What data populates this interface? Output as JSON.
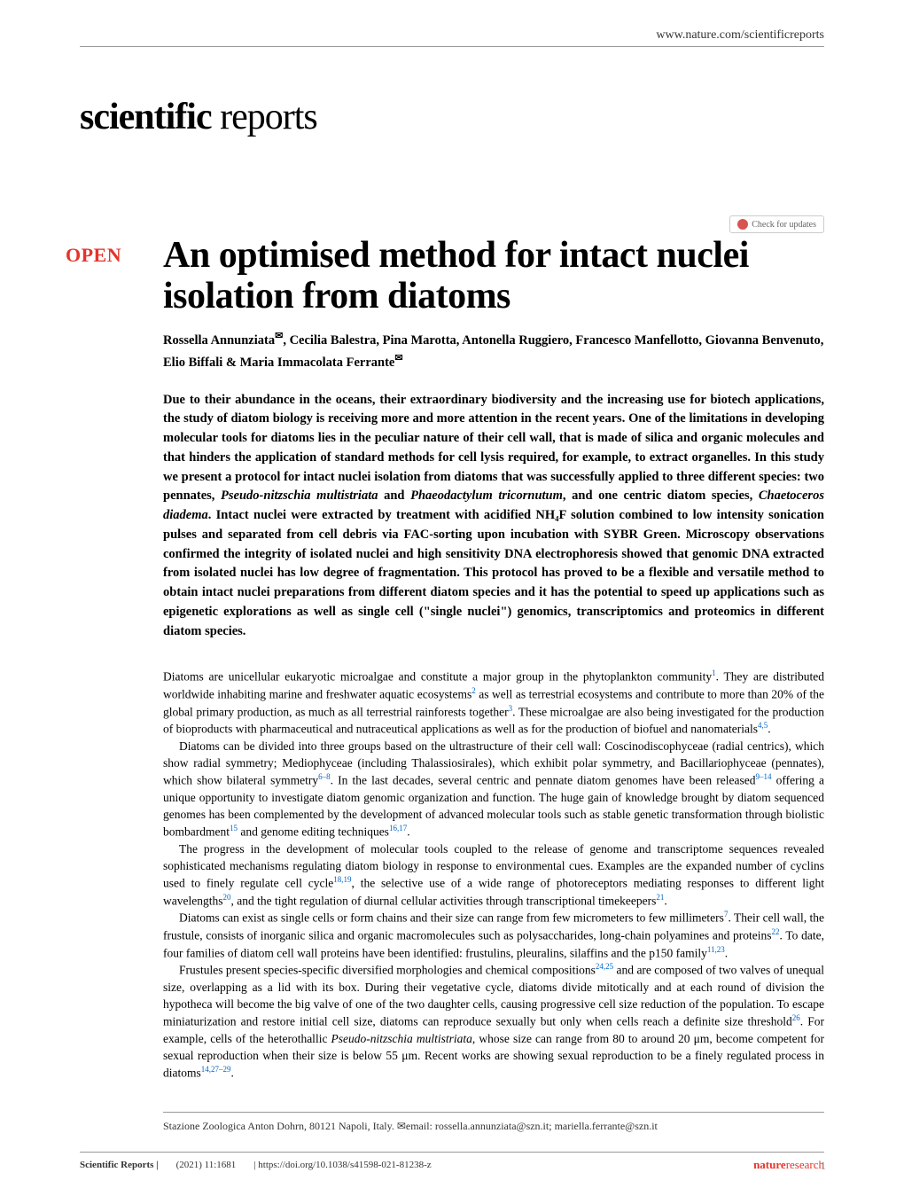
{
  "header": {
    "url": "www.nature.com/scientificreports",
    "journal_bold": "scientific",
    "journal_light": " reports",
    "check_updates": "Check for updates"
  },
  "article": {
    "open_label": "OPEN",
    "title": "An optimised method for intact nuclei isolation from diatoms",
    "authors_line1": "Rossella Annunziata",
    "authors_line2": ", Cecilia Balestra, Pina Marotta, Antonella Ruggiero, Francesco Manfellotto, Giovanna Benvenuto, Elio Biffali & Maria Immacolata Ferrante",
    "abstract": "Due to their abundance in the oceans, their extraordinary biodiversity and the increasing use for biotech applications, the study of diatom biology is receiving more and more attention in the recent years. One of the limitations in developing molecular tools for diatoms lies in the peculiar nature of their cell wall, that is made of silica and organic molecules and that hinders the application of standard methods for cell lysis required, for example, to extract organelles. In this study we present a protocol for intact nuclei isolation from diatoms that was successfully applied to three different species: two pennates, <em>Pseudo-nitzschia multistriata</em> and <em>Phaeodactylum tricornutum</em>, and one centric diatom species, <em>Chaetoceros diadema</em>. Intact nuclei were extracted by treatment with acidified NH₄F solution combined to low intensity sonication pulses and separated from cell debris via FAC-sorting upon incubation with SYBR Green. Microscopy observations confirmed the integrity of isolated nuclei and high sensitivity DNA electrophoresis showed that genomic DNA extracted from isolated nuclei has low degree of fragmentation. This protocol has proved to be a flexible and versatile method to obtain intact nuclei preparations from different diatom species and it has the potential to speed up applications such as epigenetic explorations as well as single cell (\"single nuclei\") genomics, transcriptomics and proteomics in different diatom species.",
    "body": {
      "p1": "Diatoms are unicellular eukaryotic microalgae and constitute a major group in the phytoplankton community<sup>1</sup>. They are distributed worldwide inhabiting marine and freshwater aquatic ecosystems<sup>2</sup> as well as terrestrial ecosystems and contribute to more than 20% of the global primary production, as much as all terrestrial rainforests together<sup>3</sup>. These microalgae are also being investigated for the production of bioproducts with pharmaceutical and nutraceutical applications as well as for the production of biofuel and nanomaterials<sup>4,5</sup>.",
      "p2": "Diatoms can be divided into three groups based on the ultrastructure of their cell wall: Coscinodiscophyceae (radial centrics), which show radial symmetry; Mediophyceae (including Thalassiosirales), which exhibit polar symmetry, and Bacillariophyceae (pennates), which show bilateral symmetry<sup>6–8</sup>. In the last decades, several centric and pennate diatom genomes have been released<sup>9–14</sup> offering a unique opportunity to investigate diatom genomic organization and function. The huge gain of knowledge brought by diatom sequenced genomes has been complemented by the development of advanced molecular tools such as stable genetic transformation through biolistic bombardment<sup>15</sup> and genome editing techniques<sup>16,17</sup>.",
      "p3": "The progress in the development of molecular tools coupled to the release of genome and transcriptome sequences revealed sophisticated mechanisms regulating diatom biology in response to environmental cues. Examples are the expanded number of cyclins used to finely regulate cell cycle<sup>18,19</sup>, the selective use of a wide range of photoreceptors mediating responses to different light wavelengths<sup>20</sup>, and the tight regulation of diurnal cellular activities through transcriptional timekeepers<sup>21</sup>.",
      "p4": "Diatoms can exist as single cells or form chains and their size can range from few micrometers to few millimeters<sup>7</sup>. Their cell wall, the frustule, consists of inorganic silica and organic macromolecules such as polysaccharides, long-chain polyamines and proteins<sup>22</sup>. To date, four families of diatom cell wall proteins have been identified: frustulins, pleuralins, silaffins and the p150 family<sup>11,23</sup>.",
      "p5": "Frustules present species-specific diversified morphologies and chemical compositions<sup>24,25</sup> and are composed of two valves of unequal size, overlapping as a lid with its box. During their vegetative cycle, diatoms divide mitotically and at each round of division the hypotheca will become the big valve of one of the two daughter cells, causing progressive cell size reduction of the population. To escape miniaturization and restore initial cell size, diatoms can reproduce sexually but only when cells reach a definite size threshold<sup>26</sup>. For example, cells of the heterothallic <em>Pseudo-nitzschia multistriata</em>, whose size can range from 80 to around 20 μm, become competent for sexual reproduction when their size is below 55 μm. Recent works are showing sexual reproduction to be a finely regulated process in diatoms<sup>14,27–29</sup>."
    }
  },
  "affiliation": "Stazione Zoologica Anton Dohrn, 80121 Napoli, Italy. ✉email: rossella.annunziata@szn.it; mariella.ferrante@szn.it",
  "footer": {
    "journal": "Scientific Reports |",
    "citation": "(2021) 11:1681",
    "doi": "| https://doi.org/10.1038/s41598-021-81238-z",
    "publisher_bold": "nature",
    "publisher_light": "research",
    "page": "1"
  },
  "colors": {
    "red": "#e6332a",
    "link_blue": "#0066cc",
    "text": "#333333",
    "rule": "#999999"
  }
}
